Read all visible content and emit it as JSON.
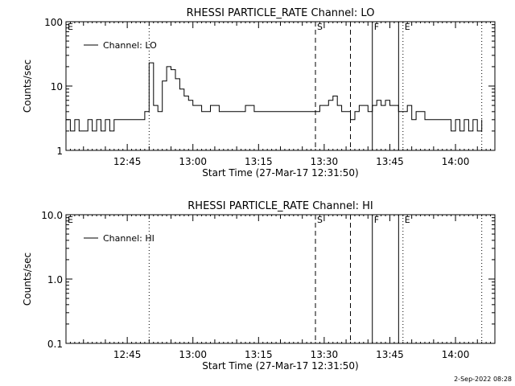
{
  "footer_date": "2-Sep-2022 08:28",
  "colors": {
    "background": "#ffffff",
    "foreground": "#000000"
  },
  "chart_data": [
    {
      "type": "line",
      "title": "RHESSI PARTICLE_RATE Channel: LO",
      "xlabel": "Start Time (27-Mar-17 12:31:50)",
      "ylabel": "Counts/sec",
      "y_scale": "log",
      "ylim": [
        1,
        100
      ],
      "y_ticks": [
        {
          "value": 1,
          "label": "1"
        },
        {
          "value": 10,
          "label": "10"
        },
        {
          "value": 100,
          "label": "100"
        }
      ],
      "xlim": [
        "12:31",
        "14:09"
      ],
      "x_ticks": [
        "12:45",
        "13:00",
        "13:15",
        "13:30",
        "13:45",
        "14:00"
      ],
      "legend": {
        "label": "Channel: LO",
        "position": "top-left"
      },
      "markers": [
        {
          "time": "12:31",
          "label": "E",
          "style": "dotted"
        },
        {
          "time": "12:50",
          "label": "",
          "style": "dotted"
        },
        {
          "time": "13:28",
          "label": "S",
          "style": "dashed"
        },
        {
          "time": "13:36",
          "label": "",
          "style": "dashed"
        },
        {
          "time": "13:41",
          "label": "F",
          "style": "solid"
        },
        {
          "time": "13:47",
          "label": "",
          "style": "solid"
        },
        {
          "time": "13:48",
          "label": "E",
          "style": "dotted"
        },
        {
          "time": "14:06",
          "label": "",
          "style": "dotted"
        }
      ],
      "series": [
        {
          "x": [
            "12:31",
            "12:32",
            "12:33",
            "12:34",
            "12:35",
            "12:36",
            "12:37",
            "12:38",
            "12:39",
            "12:40",
            "12:41",
            "12:42",
            "12:43",
            "12:44",
            "12:45",
            "12:46",
            "12:47",
            "12:48",
            "12:49",
            "12:50",
            "12:51",
            "12:52",
            "12:53",
            "12:54",
            "12:55",
            "12:56",
            "12:57",
            "12:58",
            "12:59",
            "13:00",
            "13:02",
            "13:04",
            "13:06",
            "13:08",
            "13:10",
            "13:12",
            "13:14",
            "13:16",
            "13:18",
            "13:20",
            "13:22",
            "13:24",
            "13:26",
            "13:28",
            "13:29",
            "13:30",
            "13:31",
            "13:32",
            "13:33",
            "13:34",
            "13:35",
            "13:36",
            "13:37",
            "13:38",
            "13:39",
            "13:40",
            "13:41",
            "13:42",
            "13:43",
            "13:44",
            "13:45",
            "13:46",
            "13:47",
            "13:48",
            "13:49",
            "13:50",
            "13:51",
            "13:52",
            "13:53",
            "13:54",
            "13:55",
            "13:56",
            "13:57",
            "13:58",
            "13:59",
            "14:00",
            "14:01",
            "14:02",
            "14:03",
            "14:04",
            "14:05",
            "14:06"
          ],
          "y": [
            3,
            2,
            3,
            2,
            2,
            3,
            2,
            3,
            2,
            3,
            2,
            3,
            3,
            3,
            3,
            3,
            3,
            3,
            4,
            23,
            5,
            4,
            12,
            20,
            18,
            13,
            9,
            7,
            6,
            5,
            4,
            5,
            4,
            4,
            4,
            5,
            4,
            4,
            4,
            4,
            4,
            4,
            4,
            4,
            5,
            5,
            6,
            7,
            5,
            4,
            4,
            3,
            4,
            5,
            5,
            4,
            5,
            6,
            5,
            6,
            5,
            5,
            4,
            4,
            5,
            3,
            4,
            4,
            3,
            3,
            3,
            3,
            3,
            3,
            2,
            3,
            2,
            3,
            2,
            3,
            2,
            3
          ]
        }
      ]
    },
    {
      "type": "line",
      "title": "RHESSI PARTICLE_RATE Channel: HI",
      "xlabel": "Start Time (27-Mar-17 12:31:50)",
      "ylabel": "Counts/sec",
      "y_scale": "log",
      "ylim": [
        0.1,
        10
      ],
      "y_ticks": [
        {
          "value": 0.1,
          "label": "0.1"
        },
        {
          "value": 1,
          "label": "1.0"
        },
        {
          "value": 10,
          "label": "10.0"
        }
      ],
      "xlim": [
        "12:31",
        "14:09"
      ],
      "x_ticks": [
        "12:45",
        "13:00",
        "13:15",
        "13:30",
        "13:45",
        "14:00"
      ],
      "legend": {
        "label": "Channel: HI",
        "position": "top-left"
      },
      "markers": [
        {
          "time": "12:31",
          "label": "E",
          "style": "dotted"
        },
        {
          "time": "12:50",
          "label": "",
          "style": "dotted"
        },
        {
          "time": "13:28",
          "label": "S",
          "style": "dashed"
        },
        {
          "time": "13:36",
          "label": "",
          "style": "dashed"
        },
        {
          "time": "13:41",
          "label": "F",
          "style": "solid"
        },
        {
          "time": "13:47",
          "label": "",
          "style": "solid"
        },
        {
          "time": "13:48",
          "label": "E",
          "style": "dotted"
        },
        {
          "time": "14:06",
          "label": "",
          "style": "dotted"
        }
      ],
      "series": [
        {
          "x": [],
          "y": []
        }
      ]
    }
  ]
}
